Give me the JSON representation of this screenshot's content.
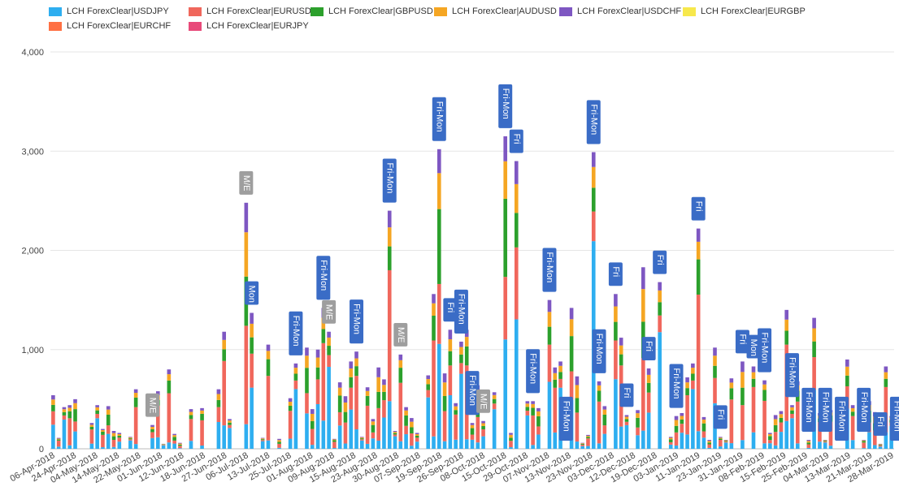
{
  "chart_data": {
    "type": "bar",
    "stacked": true,
    "ylim": [
      0,
      4000
    ],
    "y_ticks": [
      "0",
      "1,000",
      "2,000",
      "3,000",
      "4,000"
    ],
    "y_tick_values": [
      0,
      1000,
      2000,
      3000,
      4000
    ],
    "grid": true,
    "legend_position": "top",
    "x_tick_labels": [
      "06-Apr-2018",
      "24-Apr-2018",
      "04-May-2018",
      "14-May-2018",
      "22-May-2018",
      "01-Jun-2018",
      "12-Jun-2018",
      "18-Jun-2018",
      "27-Jun-2018",
      "06-Jul-2018",
      "13-Jul-2018",
      "25-Jul-2018",
      "01-Aug-2018",
      "09-Aug-2018",
      "15-Aug-2018",
      "23-Aug-2018",
      "30-Aug-2018",
      "07-Sep-2018",
      "19-Sep-2018",
      "26-Sep-2018",
      "08-Oct-2018",
      "15-Oct-2018",
      "29-Oct-2018",
      "07-Nov-2018",
      "13-Nov-2018",
      "23-Nov-2018",
      "03-Dec-2018",
      "12-Dec-2018",
      "19-Dec-2018",
      "03-Jan-2019",
      "11-Jan-2019",
      "23-Jan-2019",
      "31-Jan-2019",
      "08-Feb-2019",
      "15-Feb-2019",
      "25-Feb-2019",
      "04-Mar-2019",
      "13-Mar-2019",
      "21-Mar-2019",
      "28-Mar-2019"
    ],
    "series": [
      {
        "name": "LCH ForexClear|USDJPY",
        "color": "#2eaef0"
      },
      {
        "name": "LCH ForexClear|EURUSD",
        "color": "#f0675c"
      },
      {
        "name": "LCH ForexClear|GBPUSD",
        "color": "#2ca02c"
      },
      {
        "name": "LCH ForexClear|AUDUSD",
        "color": "#f5a623"
      },
      {
        "name": "LCH ForexClear|USDCHF",
        "color": "#7e57c2"
      },
      {
        "name": "LCH ForexClear|EURGBP",
        "color": "#f7e84c"
      },
      {
        "name": "LCH ForexClear|EURCHF",
        "color": "#ff7043"
      },
      {
        "name": "LCH ForexClear|EURJPY",
        "color": "#e84a7a"
      }
    ],
    "totals": [
      540,
      110,
      420,
      440,
      500,
      0,
      0,
      260,
      440,
      200,
      430,
      180,
      160,
      0,
      120,
      600,
      0,
      0,
      240,
      580,
      50,
      800,
      150,
      60,
      0,
      400,
      0,
      410,
      0,
      0,
      600,
      1180,
      300,
      0,
      0,
      2480,
      1370,
      0,
      110,
      1050,
      0,
      100,
      0,
      510,
      860,
      0,
      1020,
      400,
      1000,
      1420,
      1180,
      100,
      670,
      530,
      880,
      980,
      120,
      620,
      300,
      820,
      700,
      2400,
      180,
      950,
      420,
      310,
      160,
      0,
      740,
      1560,
      3020,
      760,
      1200,
      460,
      1080,
      1200,
      260,
      640,
      280,
      0,
      570,
      0,
      3150,
      160,
      2900,
      0,
      480,
      480,
      410,
      0,
      1500,
      820,
      880,
      0,
      1420,
      730,
      60,
      140,
      2990,
      680,
      430,
      0,
      1560,
      1120,
      340,
      0,
      390,
      1830,
      810,
      0,
      1680,
      0,
      120,
      330,
      360,
      720,
      860,
      2220,
      320,
      90,
      1020,
      120,
      90,
      710,
      0,
      880,
      0,
      830,
      0,
      690,
      160,
      340,
      380,
      1400,
      440,
      680,
      0,
      90,
      1320,
      360,
      90,
      390,
      0,
      0,
      900,
      440,
      0,
      90,
      480,
      370,
      50,
      830,
      330
    ],
    "annotations": [
      {
        "label": "M/E",
        "bar": 18,
        "style": "gray"
      },
      {
        "label": "M/E",
        "bar": 35,
        "style": "gray"
      },
      {
        "label": "Mon",
        "bar": 36,
        "style": "blue"
      },
      {
        "label": "Fri-Mon",
        "bar": 44,
        "style": "blue"
      },
      {
        "label": "Fri-Mon",
        "bar": 49,
        "style": "blue"
      },
      {
        "label": "M/E",
        "bar": 50,
        "style": "gray"
      },
      {
        "label": "Fri-Mon",
        "bar": 55,
        "style": "blue"
      },
      {
        "label": "Fri-Mon",
        "bar": 61,
        "style": "blue"
      },
      {
        "label": "M/E",
        "bar": 63,
        "style": "gray"
      },
      {
        "label": "Fri-Mon",
        "bar": 70,
        "style": "blue"
      },
      {
        "label": "Fri",
        "bar": 72,
        "style": "blue"
      },
      {
        "label": "Fri-Mon",
        "bar": 74,
        "style": "blue"
      },
      {
        "label": "Fri-Mon",
        "bar": 76,
        "style": "blue"
      },
      {
        "label": "M/E",
        "bar": 78,
        "style": "gray"
      },
      {
        "label": "Fri-Mon",
        "bar": 82,
        "style": "blue"
      },
      {
        "label": "Fri",
        "bar": 84,
        "style": "blue"
      },
      {
        "label": "Fri-Mon",
        "bar": 87,
        "style": "blue"
      },
      {
        "label": "Fri-Mon",
        "bar": 90,
        "style": "blue"
      },
      {
        "label": "Fri-Mon",
        "bar": 93,
        "style": "blue"
      },
      {
        "label": "Fri-Mon",
        "bar": 98,
        "style": "blue"
      },
      {
        "label": "Fri-Mon",
        "bar": 99,
        "style": "blue"
      },
      {
        "label": "Fri",
        "bar": 102,
        "style": "blue"
      },
      {
        "label": "Fri",
        "bar": 104,
        "style": "blue"
      },
      {
        "label": "Fri",
        "bar": 108,
        "style": "blue"
      },
      {
        "label": "Fri",
        "bar": 110,
        "style": "blue"
      },
      {
        "label": "Fri-Mon",
        "bar": 113,
        "style": "blue"
      },
      {
        "label": "Fri",
        "bar": 117,
        "style": "blue"
      },
      {
        "label": "Fri",
        "bar": 121,
        "style": "blue"
      },
      {
        "label": "Fri",
        "bar": 125,
        "style": "blue"
      },
      {
        "label": "Mon",
        "bar": 127,
        "style": "blue"
      },
      {
        "label": "Fri-Mon",
        "bar": 129,
        "style": "blue"
      },
      {
        "label": "Fri-Mon",
        "bar": 134,
        "style": "blue"
      },
      {
        "label": "Fri-Mon",
        "bar": 137,
        "style": "blue"
      },
      {
        "label": "Fri-Mon",
        "bar": 140,
        "style": "blue"
      },
      {
        "label": "Fri-Mon",
        "bar": 143,
        "style": "blue"
      },
      {
        "label": "Fri-Mon",
        "bar": 147,
        "style": "blue"
      },
      {
        "label": "Fri",
        "bar": 150,
        "style": "blue"
      },
      {
        "label": "Fri-Mon",
        "bar": 153,
        "style": "blue"
      }
    ],
    "annotation_colors": {
      "blue": "#3a6cc6",
      "gray": "#9e9e9e"
    }
  }
}
